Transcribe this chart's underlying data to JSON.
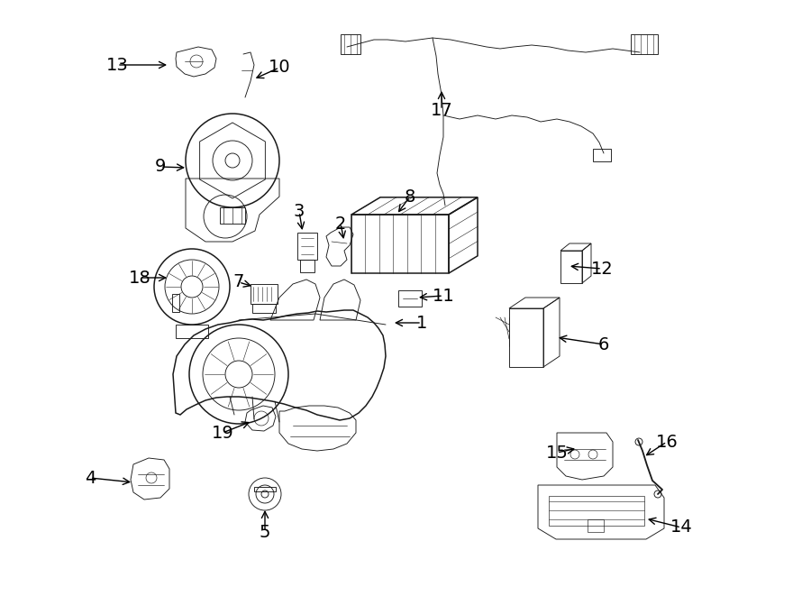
{
  "bg_color": "#ffffff",
  "line_color": "#1a1a1a",
  "lw_main": 1.1,
  "lw_thin": 0.65,
  "label_fontsize": 14,
  "labels": [
    [
      "1",
      468,
      358,
      435,
      358
    ],
    [
      "2",
      378,
      248,
      382,
      268
    ],
    [
      "3",
      332,
      235,
      336,
      258
    ],
    [
      "4",
      100,
      530,
      148,
      535
    ],
    [
      "5",
      294,
      590,
      294,
      563
    ],
    [
      "6",
      670,
      382,
      617,
      374
    ],
    [
      "7",
      265,
      313,
      282,
      318
    ],
    [
      "8",
      455,
      218,
      440,
      238
    ],
    [
      "9",
      178,
      185,
      208,
      186
    ],
    [
      "10",
      310,
      75,
      281,
      88
    ],
    [
      "11",
      492,
      328,
      462,
      330
    ],
    [
      "12",
      668,
      298,
      630,
      295
    ],
    [
      "13",
      130,
      72,
      188,
      72
    ],
    [
      "14",
      756,
      585,
      716,
      575
    ],
    [
      "15",
      618,
      502,
      641,
      497
    ],
    [
      "16",
      740,
      490,
      714,
      507
    ],
    [
      "17",
      490,
      122,
      490,
      98
    ],
    [
      "18",
      155,
      308,
      188,
      308
    ],
    [
      "19",
      247,
      480,
      280,
      467
    ]
  ]
}
